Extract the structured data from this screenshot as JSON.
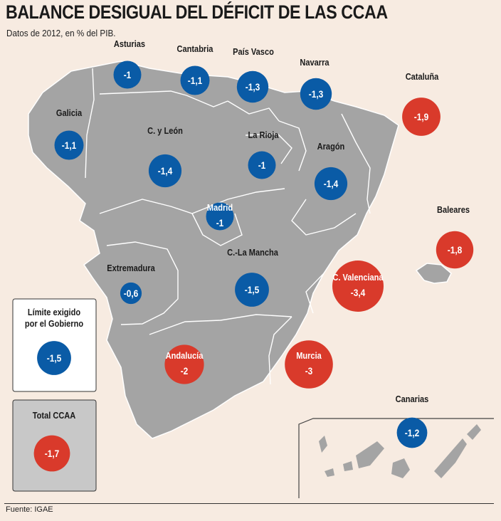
{
  "title": "BALANCE DESIGUAL DEL DÉFICIT DE LAS CCAA",
  "subtitle": "Datos de 2012, en % del PIB.",
  "source": "Fuente: IGAE",
  "colors": {
    "background": "#f7ebe1",
    "map": "#a4a4a4",
    "map_border": "#ffffff",
    "below_limit": "#0a5ba6",
    "above_limit": "#d93a2b"
  },
  "chart_data": {
    "type": "bubble-map",
    "unit": "% del PIB",
    "regions": [
      {
        "name": "Asturias",
        "value": -1,
        "label": "-1",
        "color": "#0a5ba6"
      },
      {
        "name": "Cantabria",
        "value": -1.1,
        "label": "-1,1",
        "color": "#0a5ba6"
      },
      {
        "name": "País Vasco",
        "value": -1.3,
        "label": "-1,3",
        "color": "#0a5ba6"
      },
      {
        "name": "Navarra",
        "value": -1.3,
        "label": "-1,3",
        "color": "#0a5ba6"
      },
      {
        "name": "Cataluña",
        "value": -1.9,
        "label": "-1,9",
        "color": "#d93a2b"
      },
      {
        "name": "Galicia",
        "value": -1.1,
        "label": "-1,1",
        "color": "#0a5ba6"
      },
      {
        "name": "C. y León",
        "value": -1.4,
        "label": "-1,4",
        "color": "#0a5ba6"
      },
      {
        "name": "La Rioja",
        "value": -1,
        "label": "-1",
        "color": "#0a5ba6"
      },
      {
        "name": "Aragón",
        "value": -1.4,
        "label": "-1,4",
        "color": "#0a5ba6"
      },
      {
        "name": "Madrid",
        "value": -1,
        "label": "-1",
        "color": "#0a5ba6"
      },
      {
        "name": "Baleares",
        "value": -1.8,
        "label": "-1,8",
        "color": "#d93a2b"
      },
      {
        "name": "Extremadura",
        "value": -0.6,
        "label": "-0,6",
        "color": "#0a5ba6"
      },
      {
        "name": "C.-La Mancha",
        "value": -1.5,
        "label": "-1,5",
        "color": "#0a5ba6"
      },
      {
        "name": "C. Valenciana",
        "value": -3.4,
        "label": "-3,4",
        "color": "#d93a2b"
      },
      {
        "name": "Andalucía",
        "value": -2,
        "label": "-2",
        "color": "#d93a2b"
      },
      {
        "name": "Murcia",
        "value": -3,
        "label": "-3",
        "color": "#d93a2b"
      },
      {
        "name": "Canarias",
        "value": -1.2,
        "label": "-1,2",
        "color": "#0a5ba6"
      }
    ],
    "legend": [
      {
        "name": "Límite exigido por el Gobierno",
        "line1": "Límite exigido",
        "line2": "por el Gobierno",
        "value": -1.5,
        "label": "-1,5",
        "color": "#0a5ba6"
      },
      {
        "name": "Total CCAA",
        "line1": "Total CCAA",
        "value": -1.7,
        "label": "-1,7",
        "color": "#d93a2b"
      }
    ]
  }
}
